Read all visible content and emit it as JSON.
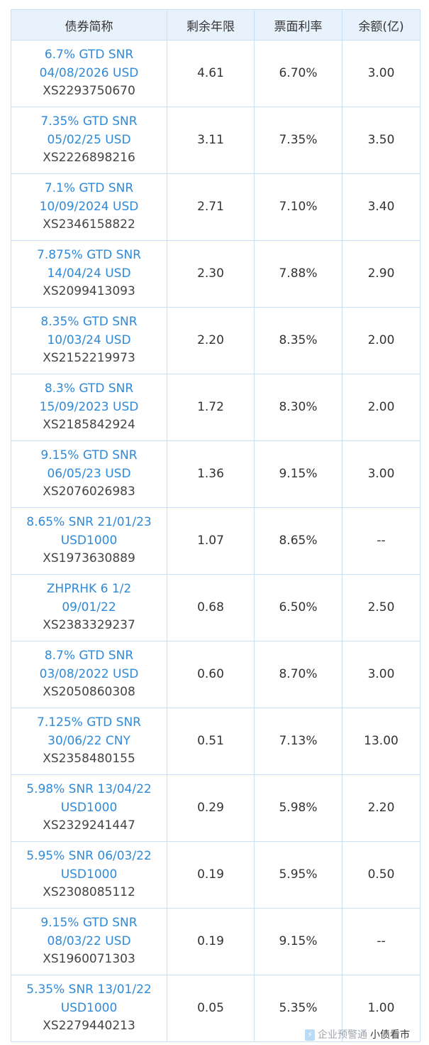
{
  "headers": [
    "债券简称",
    "剩余年限",
    "票面利率",
    "余额(亿)"
  ],
  "rows": [
    {
      "name1": "6.7% GTD SNR",
      "name2": "04/08/2026 USD",
      "code": "XS2293750670",
      "years": "4.61",
      "coupon": "6.70%",
      "balance": "3.00"
    },
    {
      "name1": "7.35% GTD SNR",
      "name2": "05/02/25 USD",
      "code": "XS2226898216",
      "years": "3.11",
      "coupon": "7.35%",
      "balance": "3.50"
    },
    {
      "name1": "7.1% GTD SNR",
      "name2": "10/09/2024 USD",
      "code": "XS2346158822",
      "years": "2.71",
      "coupon": "7.10%",
      "balance": "3.40"
    },
    {
      "name1": "7.875% GTD SNR",
      "name2": "14/04/24 USD",
      "code": "XS2099413093",
      "years": "2.30",
      "coupon": "7.88%",
      "balance": "2.90"
    },
    {
      "name1": "8.35% GTD SNR",
      "name2": "10/03/24 USD",
      "code": "XS2152219973",
      "years": "2.20",
      "coupon": "8.35%",
      "balance": "2.00"
    },
    {
      "name1": "8.3% GTD SNR",
      "name2": "15/09/2023 USD",
      "code": "XS2185842924",
      "years": "1.72",
      "coupon": "8.30%",
      "balance": "2.00"
    },
    {
      "name1": "9.15% GTD SNR",
      "name2": "06/05/23 USD",
      "code": "XS2076026983",
      "years": "1.36",
      "coupon": "9.15%",
      "balance": "3.00"
    },
    {
      "name1": "8.65% SNR 21/01/23",
      "name2": "USD1000",
      "code": "XS1973630889",
      "years": "1.07",
      "coupon": "8.65%",
      "balance": "--"
    },
    {
      "name1": "ZHPRHK 6 1/2",
      "name2": "09/01/22",
      "code": "XS2383329237",
      "years": "0.68",
      "coupon": "6.50%",
      "balance": "2.50"
    },
    {
      "name1": "8.7% GTD SNR",
      "name2": "03/08/2022 USD",
      "code": "XS2050860308",
      "years": "0.60",
      "coupon": "8.70%",
      "balance": "3.00"
    },
    {
      "name1": "7.125% GTD SNR",
      "name2": "30/06/22 CNY",
      "code": "XS2358480155",
      "years": "0.51",
      "coupon": "7.13%",
      "balance": "13.00"
    },
    {
      "name1": "5.98% SNR 13/04/22",
      "name2": "USD1000",
      "code": "XS2329241447",
      "years": "0.29",
      "coupon": "5.98%",
      "balance": "2.20"
    },
    {
      "name1": "5.95% SNR 06/03/22",
      "name2": "USD1000",
      "code": "XS2308085112",
      "years": "0.19",
      "coupon": "5.95%",
      "balance": "0.50"
    },
    {
      "name1": "9.15% GTD SNR",
      "name2": "08/03/22 USD",
      "code": "XS1960071303",
      "years": "0.19",
      "coupon": "9.15%",
      "balance": "--"
    },
    {
      "name1": "5.35% SNR 13/01/22",
      "name2": "USD1000",
      "code": "XS2279440213",
      "years": "0.05",
      "coupon": "5.35%",
      "balance": "1.00"
    }
  ],
  "watermarks": {
    "left": "企业预警通",
    "right": "小债看市"
  },
  "colors": {
    "link": "#2f8ad8",
    "header_bg": "#e8f2fc",
    "border": "#c9e1f6"
  }
}
